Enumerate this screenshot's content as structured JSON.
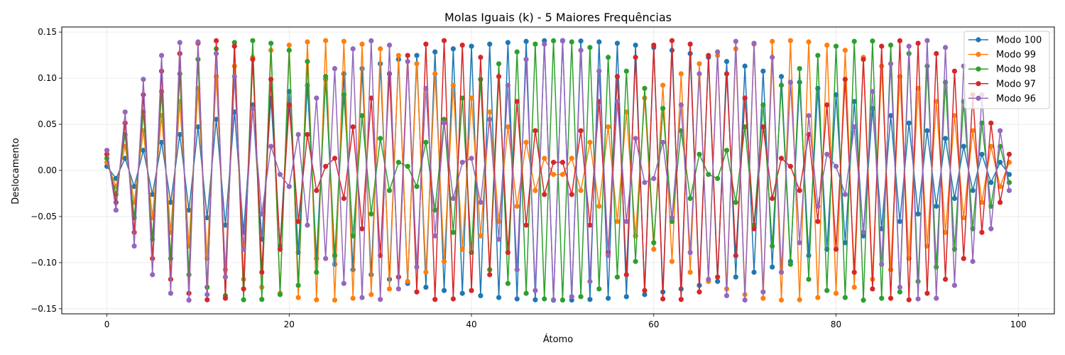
{
  "chart_data": {
    "type": "line",
    "title": "Molas Iguais (k) - 5 Maiores Frequências",
    "xlabel": "Átomo",
    "ylabel": "Deslocamento",
    "xlim": [
      -4.95,
      103.95
    ],
    "ylim": [
      -0.1555,
      0.1555
    ],
    "xticks": [
      0,
      20,
      40,
      60,
      80,
      100
    ],
    "yticks": [
      -0.15,
      -0.1,
      -0.05,
      0.0,
      0.05,
      0.1,
      0.15
    ],
    "xtick_labels": [
      "0",
      "20",
      "40",
      "60",
      "80",
      "100"
    ],
    "ytick_labels": [
      "−0.15",
      "−0.10",
      "−0.05",
      "0.00",
      "0.05",
      "0.10",
      "0.15"
    ],
    "grid": true,
    "legend_position": "top-right",
    "markers": true,
    "num_atoms": 100,
    "series": [
      {
        "name": "Modo 100",
        "mode": 100,
        "color": "#1f77b4"
      },
      {
        "name": "Modo 99",
        "mode": 99,
        "color": "#ff7f0e"
      },
      {
        "name": "Modo 98",
        "mode": 98,
        "color": "#2ca02c"
      },
      {
        "name": "Modo 97",
        "mode": 97,
        "color": "#d62728"
      },
      {
        "name": "Modo 96",
        "mode": 96,
        "color": "#9467bd"
      }
    ]
  }
}
